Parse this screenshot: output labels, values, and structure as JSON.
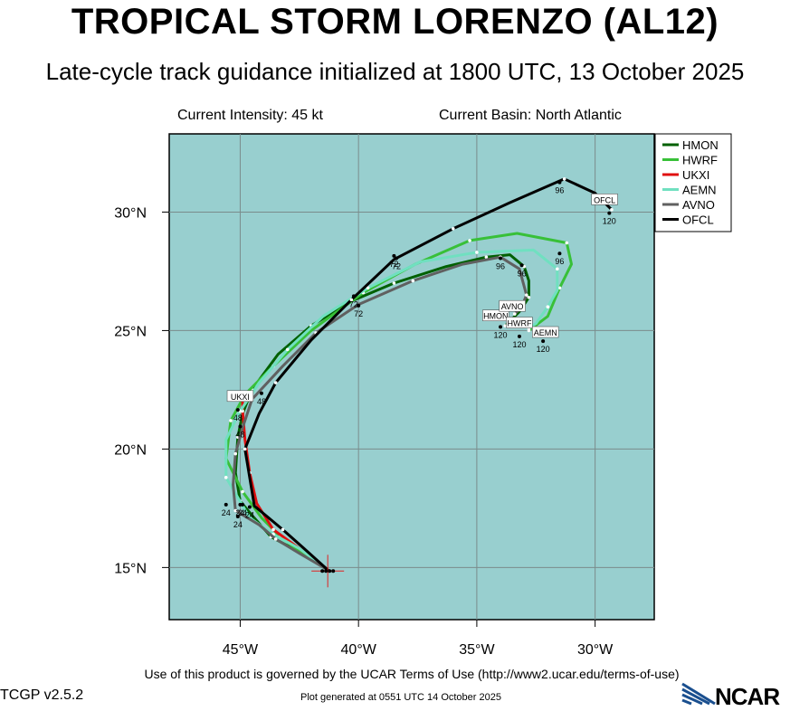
{
  "header": {
    "title": "TROPICAL STORM LORENZO (AL12)",
    "subtitle": "Late-cycle track guidance initialized at 1800 UTC, 13 October 2025",
    "intensity": "Current Intensity: 45 kt",
    "basin": "Current Basin: North Atlantic"
  },
  "footer": {
    "terms": "Use of this product is governed by the UCAR Terms of Use (http://www2.ucar.edu/terms-of-use)",
    "version": "TCGP v2.5.2",
    "generated": "Plot generated at 0551 UTC   14 October 2025",
    "logo": "NCAR"
  },
  "colors": {
    "ocean": "#98cfcf",
    "grid": "#7a8c8c",
    "HMON": "#006000",
    "HWRF": "#38c038",
    "UKXI": "#e01010",
    "AEMN": "#70e0c0",
    "AVNO": "#606060",
    "OFCL": "#000000"
  },
  "chart_data": {
    "type": "map",
    "xlim": [
      -48,
      -27.5
    ],
    "ylim": [
      12.8,
      33.3
    ],
    "xticks": [
      -45,
      -40,
      -35,
      -30
    ],
    "yticks": [
      15,
      20,
      25,
      30
    ],
    "xtick_labels": [
      "45°W",
      "40°W",
      "35°W",
      "30°W"
    ],
    "ytick_labels": [
      "15°N",
      "20°N",
      "25°N",
      "30°N"
    ],
    "initial_position": [
      -41.3,
      14.85
    ],
    "legend_placement": "top-right",
    "series": [
      {
        "name": "HMON",
        "points": [
          [
            -41.3,
            14.9
          ],
          [
            -42.6,
            15.7
          ],
          [
            -43.7,
            16.3
          ],
          [
            -44.5,
            17.2
          ],
          [
            -45.0,
            17.8
          ],
          [
            -45.2,
            19.0
          ],
          [
            -45.1,
            20.5
          ],
          [
            -44.9,
            21.5
          ],
          [
            -44.5,
            22.5
          ],
          [
            -43.4,
            24.0
          ],
          [
            -42.0,
            25.2
          ],
          [
            -40.4,
            26.2
          ],
          [
            -38.5,
            27.0
          ],
          [
            -36.3,
            27.7
          ],
          [
            -34.6,
            28.1
          ],
          [
            -33.6,
            28.2
          ],
          [
            -33.0,
            27.7
          ],
          [
            -32.8,
            27.1
          ],
          [
            -32.8,
            26.4
          ],
          [
            -33.2,
            25.8
          ],
          [
            -33.8,
            25.2
          ]
        ],
        "labels": [
          {
            "text": "24",
            "at": [
              -45.0,
              17.5
            ]
          },
          {
            "text": "48",
            "at": [
              -45.1,
              21.5
            ]
          },
          {
            "text": "72",
            "at": [
              -40.2,
              26.3
            ]
          },
          {
            "text": "96",
            "at": [
              -34.0,
              27.9
            ]
          },
          {
            "text": "120",
            "at": [
              -34.0,
              25.0
            ]
          }
        ],
        "tag": {
          "text": "HMON",
          "at": [
            -34.2,
            25.6
          ]
        }
      },
      {
        "name": "HWRF",
        "points": [
          [
            -41.3,
            14.9
          ],
          [
            -42.4,
            15.6
          ],
          [
            -43.3,
            16.3
          ],
          [
            -44.1,
            17.1
          ],
          [
            -44.9,
            18.2
          ],
          [
            -45.6,
            19.6
          ],
          [
            -45.4,
            21.2
          ],
          [
            -44.8,
            22.3
          ],
          [
            -43.6,
            23.5
          ],
          [
            -42.0,
            25.0
          ],
          [
            -39.8,
            26.6
          ],
          [
            -37.6,
            27.8
          ],
          [
            -35.3,
            28.8
          ],
          [
            -33.3,
            29.1
          ],
          [
            -31.2,
            28.7
          ],
          [
            -31.0,
            27.8
          ],
          [
            -31.5,
            26.8
          ],
          [
            -32.0,
            25.6
          ],
          [
            -32.8,
            25.0
          ]
        ],
        "labels": [
          {
            "text": "24",
            "at": [
              -44.9,
              17.5
            ]
          },
          {
            "text": "72",
            "at": [
              -38.4,
              27.9
            ]
          },
          {
            "text": "96",
            "at": [
              -31.5,
              28.1
            ]
          },
          {
            "text": "120",
            "at": [
              -33.2,
              24.6
            ]
          }
        ],
        "tag": {
          "text": "HWRF",
          "at": [
            -33.2,
            25.3
          ]
        }
      },
      {
        "name": "UKXI",
        "points": [
          [
            -41.3,
            14.9
          ],
          [
            -42.5,
            15.8
          ],
          [
            -43.6,
            16.6
          ],
          [
            -44.3,
            17.7
          ],
          [
            -44.6,
            19.0
          ],
          [
            -44.8,
            20.4
          ],
          [
            -44.9,
            21.6
          ],
          [
            -44.9,
            22.1
          ]
        ],
        "labels": [],
        "tag": {
          "text": "UKXI",
          "at": [
            -45.0,
            22.2
          ]
        }
      },
      {
        "name": "AEMN",
        "points": [
          [
            -41.3,
            14.9
          ],
          [
            -42.5,
            15.8
          ],
          [
            -43.6,
            16.4
          ],
          [
            -44.6,
            17.1
          ],
          [
            -45.6,
            18.8
          ],
          [
            -45.6,
            20.4
          ],
          [
            -45.0,
            21.6
          ],
          [
            -44.2,
            22.8
          ],
          [
            -43.0,
            24.2
          ],
          [
            -41.5,
            25.6
          ],
          [
            -39.6,
            26.8
          ],
          [
            -37.4,
            27.9
          ],
          [
            -35.0,
            28.3
          ],
          [
            -32.6,
            28.4
          ],
          [
            -31.6,
            27.6
          ],
          [
            -31.6,
            26.7
          ],
          [
            -32.0,
            26.0
          ],
          [
            -32.5,
            25.3
          ],
          [
            -32.8,
            25.1
          ]
        ],
        "labels": [
          {
            "text": "24",
            "at": [
              -45.6,
              17.5
            ]
          },
          {
            "text": "120",
            "at": [
              -32.2,
              24.4
            ]
          }
        ],
        "tag": {
          "text": "AEMN",
          "at": [
            -32.1,
            24.9
          ]
        }
      },
      {
        "name": "AVNO",
        "points": [
          [
            -41.3,
            14.9
          ],
          [
            -42.5,
            15.6
          ],
          [
            -43.5,
            16.2
          ],
          [
            -44.2,
            16.8
          ],
          [
            -45.2,
            17.4
          ],
          [
            -45.3,
            18.5
          ],
          [
            -45.2,
            19.8
          ],
          [
            -44.9,
            20.9
          ],
          [
            -44.5,
            22.1
          ],
          [
            -43.2,
            23.5
          ],
          [
            -41.8,
            24.9
          ],
          [
            -40.0,
            26.1
          ],
          [
            -37.7,
            27.1
          ],
          [
            -35.6,
            27.8
          ],
          [
            -34.0,
            28.1
          ],
          [
            -33.2,
            27.6
          ],
          [
            -32.9,
            26.5
          ],
          [
            -33.1,
            26.0
          ],
          [
            -33.4,
            25.7
          ]
        ],
        "labels": [
          {
            "text": "24",
            "at": [
              -45.1,
              17.0
            ]
          },
          {
            "text": "48",
            "at": [
              -45.0,
              20.8
            ]
          },
          {
            "text": "72",
            "at": [
              -40.0,
              25.9
            ]
          },
          {
            "text": "96",
            "at": [
              -33.1,
              27.6
            ]
          }
        ],
        "tag": {
          "text": "AVNO",
          "at": [
            -33.5,
            26.0
          ]
        }
      },
      {
        "name": "OFCL",
        "points": [
          [
            -41.3,
            14.9
          ],
          [
            -42.3,
            15.8
          ],
          [
            -43.2,
            16.6
          ],
          [
            -44.4,
            17.6
          ],
          [
            -44.8,
            20.0
          ],
          [
            -44.2,
            21.5
          ],
          [
            -43.5,
            22.8
          ],
          [
            -42.0,
            24.6
          ],
          [
            -40.3,
            26.3
          ],
          [
            -38.5,
            28.0
          ],
          [
            -36.0,
            29.3
          ],
          [
            -33.6,
            30.4
          ],
          [
            -31.3,
            31.4
          ],
          [
            -30.0,
            30.8
          ],
          [
            -29.3,
            30.1
          ]
        ],
        "labels": [
          {
            "text": "24",
            "at": [
              -44.6,
              17.4
            ]
          },
          {
            "text": "48",
            "at": [
              -44.1,
              22.2
            ]
          },
          {
            "text": "72",
            "at": [
              -38.5,
              28.0
            ]
          },
          {
            "text": "96",
            "at": [
              -31.5,
              31.1
            ]
          },
          {
            "text": "120",
            "at": [
              -29.4,
              29.8
            ]
          }
        ],
        "tag": {
          "text": "OFCL",
          "at": [
            -29.6,
            30.5
          ]
        }
      }
    ]
  }
}
